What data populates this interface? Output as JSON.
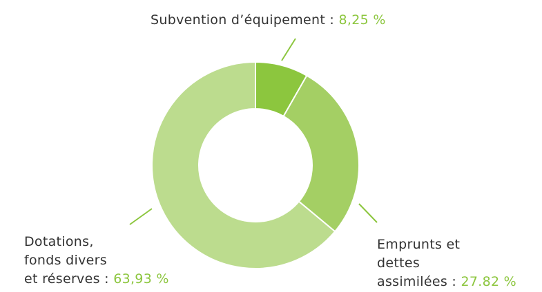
{
  "chart_data": {
    "type": "pie",
    "categories": [
      "Subvention d’équipement :",
      "Emprunts et\ndettes\nassimilées :",
      "Dotations,\nfonds divers\net réserves :"
    ],
    "values": [
      8.25,
      27.82,
      63.93
    ],
    "value_labels": [
      "8,25 %",
      "27.82 %",
      "63,93 %"
    ],
    "colors": [
      "#8cc63e",
      "#a4cf64",
      "#bcdc8e"
    ]
  }
}
